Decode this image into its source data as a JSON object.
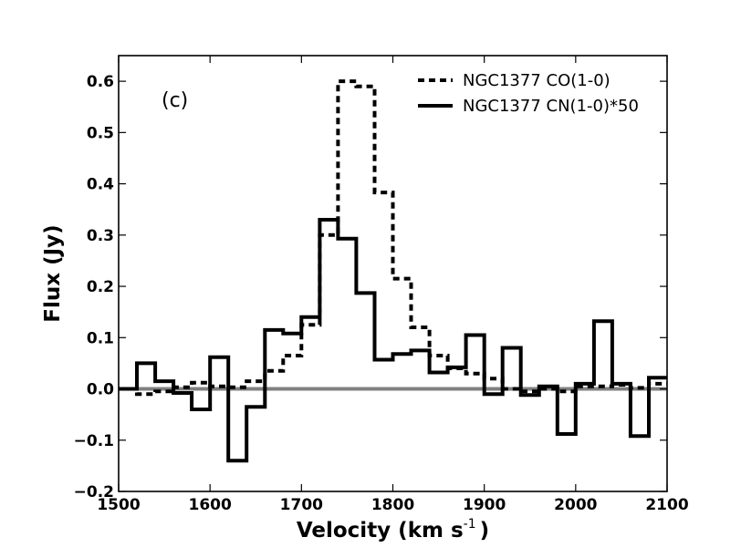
{
  "chart_data": {
    "type": "line",
    "style": "step",
    "panel_label": "(c)",
    "xlabel": "Velocity (km s",
    "xlabel_superscript": "-1",
    "xlabel_suffix": ")",
    "ylabel": "Flux (Jy)",
    "xlim": [
      1500,
      2100
    ],
    "ylim": [
      -0.2,
      0.65
    ],
    "xticks": [
      1500,
      1600,
      1700,
      1800,
      1900,
      2000,
      2100
    ],
    "xtick_labels": [
      "1500",
      "1600",
      "1700",
      "1800",
      "1900",
      "2000",
      "2100"
    ],
    "yticks": [
      -0.2,
      -0.1,
      0.0,
      0.1,
      0.2,
      0.3,
      0.4,
      0.5,
      0.6
    ],
    "ytick_labels": [
      "−0.2",
      "−0.1",
      "0.0",
      "0.1",
      "0.2",
      "0.3",
      "0.4",
      "0.5",
      "0.6"
    ],
    "zero_line": {
      "y": 0.0,
      "color": "#808080"
    },
    "legend_position": "top-right",
    "series": [
      {
        "name": "NGC1377 CO(1-0)",
        "line_style": "dashed",
        "color": "#000000",
        "x": [
          1500,
          1520,
          1540,
          1560,
          1580,
          1600,
          1620,
          1640,
          1660,
          1680,
          1700,
          1720,
          1740,
          1760,
          1780,
          1800,
          1820,
          1840,
          1860,
          1880,
          1900,
          1920,
          1940,
          1960,
          1980,
          2000,
          2020,
          2040,
          2060,
          2080
        ],
        "y": [
          0.0,
          -0.01,
          -0.005,
          0.003,
          0.012,
          0.005,
          0.003,
          0.015,
          0.035,
          0.065,
          0.125,
          0.3,
          0.6,
          0.59,
          0.383,
          0.215,
          0.12,
          0.065,
          0.04,
          0.03,
          0.02,
          0.0,
          -0.005,
          0.0,
          -0.005,
          0.005,
          0.005,
          0.008,
          0.002,
          0.01
        ]
      },
      {
        "name": "NGC1377 CN(1-0)*50",
        "line_style": "solid",
        "color": "#000000",
        "x": [
          1500,
          1520,
          1540,
          1560,
          1580,
          1600,
          1620,
          1640,
          1660,
          1680,
          1700,
          1720,
          1740,
          1760,
          1780,
          1800,
          1820,
          1840,
          1860,
          1880,
          1900,
          1920,
          1940,
          1960,
          1980,
          2000,
          2020,
          2040,
          2060,
          2080
        ],
        "y": [
          0.0,
          0.05,
          0.015,
          -0.008,
          -0.04,
          0.062,
          -0.14,
          -0.035,
          0.115,
          0.108,
          0.14,
          0.33,
          0.293,
          0.187,
          0.057,
          0.068,
          0.075,
          0.032,
          0.042,
          0.105,
          -0.01,
          0.08,
          -0.012,
          0.005,
          -0.088,
          0.01,
          0.132,
          0.01,
          -0.092,
          0.022
        ]
      }
    ]
  }
}
